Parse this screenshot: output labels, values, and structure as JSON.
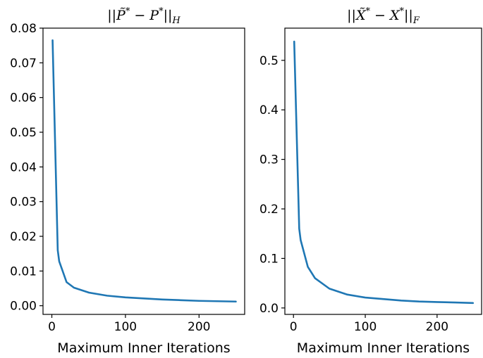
{
  "chart_data": [
    {
      "type": "line",
      "title": "||P̃* − P*||_H",
      "title_parts": {
        "main": "||P̃",
        "sup1": "*",
        "mid": " − P",
        "sup2": "*",
        "close": "||",
        "sub": "H"
      },
      "xlabel": "Maximum Inner Iterations",
      "ylabel": "",
      "xlim": [
        -12,
        262
      ],
      "ylim": [
        -0.0025,
        0.08
      ],
      "xticks": [
        0,
        100,
        200
      ],
      "xtick_labels": [
        "0",
        "100",
        "200"
      ],
      "yticks": [
        0.0,
        0.01,
        0.02,
        0.03,
        0.04,
        0.05,
        0.06,
        0.07,
        0.08
      ],
      "ytick_labels": [
        "0.00",
        "0.01",
        "0.02",
        "0.03",
        "0.04",
        "0.05",
        "0.06",
        "0.07",
        "0.08"
      ],
      "grid": false,
      "series": [
        {
          "color": "#1f77b4",
          "x": [
            1,
            8,
            10,
            20,
            30,
            50,
            75,
            100,
            125,
            150,
            175,
            200,
            225,
            250
          ],
          "y": [
            0.0765,
            0.016,
            0.0128,
            0.0068,
            0.0052,
            0.0038,
            0.0029,
            0.0024,
            0.0021,
            0.0018,
            0.0016,
            0.0014,
            0.0013,
            0.0012
          ]
        }
      ]
    },
    {
      "type": "line",
      "title": "||X̃* − X*||_F",
      "title_parts": {
        "main": "||X̃",
        "sup1": "*",
        "mid": " − X",
        "sup2": "*",
        "close": "||",
        "sub": "F"
      },
      "xlabel": "Maximum Inner Iterations",
      "ylabel": "",
      "xlim": [
        -12,
        262
      ],
      "ylim": [
        -0.013,
        0.565
      ],
      "xticks": [
        0,
        100,
        200
      ],
      "xtick_labels": [
        "0",
        "100",
        "200"
      ],
      "yticks": [
        0.0,
        0.1,
        0.2,
        0.3,
        0.4,
        0.5
      ],
      "ytick_labels": [
        "0.0",
        "0.1",
        "0.2",
        "0.3",
        "0.4",
        "0.5"
      ],
      "grid": false,
      "series": [
        {
          "color": "#1f77b4",
          "x": [
            1,
            8,
            10,
            20,
            30,
            50,
            75,
            100,
            125,
            150,
            175,
            200,
            225,
            250
          ],
          "y": [
            0.538,
            0.16,
            0.137,
            0.083,
            0.06,
            0.039,
            0.027,
            0.021,
            0.018,
            0.015,
            0.013,
            0.012,
            0.011,
            0.01
          ]
        }
      ]
    }
  ]
}
